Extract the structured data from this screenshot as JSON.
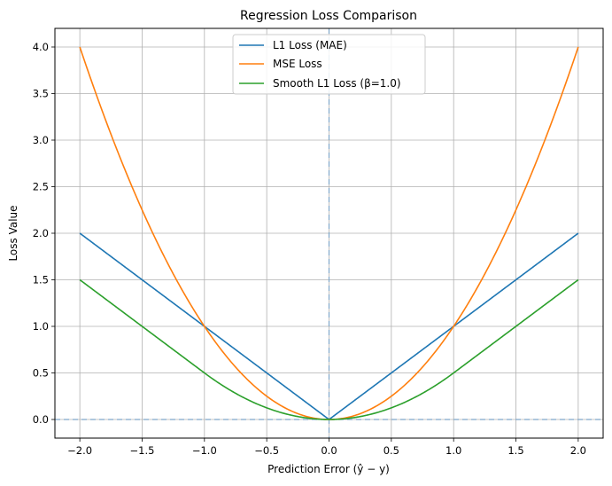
{
  "chart_data": {
    "type": "line",
    "title": "Regression Loss Comparison",
    "xlabel": "Prediction Error (ŷ − y)",
    "ylabel": "Loss Value",
    "xlim": [
      -2.2,
      2.2
    ],
    "ylim": [
      -0.2,
      4.2
    ],
    "x_domain": [
      -2.0,
      2.0
    ],
    "xticks": [
      -2.0,
      -1.5,
      -1.0,
      -0.5,
      0.0,
      0.5,
      1.0,
      1.5,
      2.0
    ],
    "xtick_labels": [
      "−2.0",
      "−1.5",
      "−1.0",
      "−0.5",
      "0.0",
      "0.5",
      "1.0",
      "1.5",
      "2.0"
    ],
    "yticks": [
      0.0,
      0.5,
      1.0,
      1.5,
      2.0,
      2.5,
      3.0,
      3.5,
      4.0
    ],
    "ytick_labels": [
      "0.0",
      "0.5",
      "1.0",
      "1.5",
      "2.0",
      "2.5",
      "3.0",
      "3.5",
      "4.0"
    ],
    "grid": true,
    "legend_position": "top-center",
    "reference_lines": [
      {
        "orientation": "horizontal",
        "value": 0.0,
        "style": "dashed"
      },
      {
        "orientation": "vertical",
        "value": 0.0,
        "style": "dashed"
      }
    ],
    "series": [
      {
        "name": "L1 Loss (MAE)",
        "function": "abs",
        "color": "#1f77b4",
        "x": [
          -2.0,
          -1.0,
          0.0,
          1.0,
          2.0
        ],
        "values": [
          2.0,
          1.0,
          0.0,
          1.0,
          2.0
        ]
      },
      {
        "name": "MSE Loss",
        "function": "square",
        "color": "#ff7f0e",
        "x": [
          -2.0,
          -1.0,
          0.0,
          1.0,
          2.0
        ],
        "values": [
          4.0,
          1.0,
          0.0,
          1.0,
          4.0
        ]
      },
      {
        "name": "Smooth L1 Loss (β=1.0)",
        "function": "smooth_l1",
        "beta": 1.0,
        "color": "#2ca02c",
        "x": [
          -2.0,
          -1.0,
          0.0,
          1.0,
          2.0
        ],
        "values": [
          1.5,
          0.5,
          0.0,
          0.5,
          1.5
        ]
      }
    ],
    "colors": {
      "grid": "#b0b0b0",
      "reference_line": "#7fa7c9",
      "axes": "#000000"
    }
  }
}
